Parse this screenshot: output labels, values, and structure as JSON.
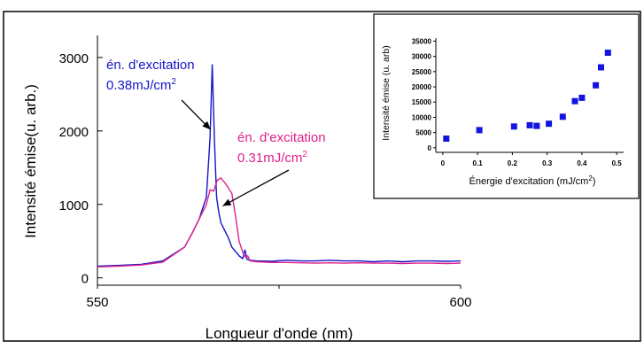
{
  "chart_data": [
    {
      "type": "line",
      "xlabel": "Longueur d'onde (nm)",
      "ylabel": "Intensité émise(u. arb.)",
      "xlim": [
        550,
        600
      ],
      "ylim": [
        -100,
        3300
      ],
      "x_ticks": [
        550,
        600
      ],
      "x_tick_labels": [
        "550",
        "600"
      ],
      "y_ticks": [
        0,
        1000,
        2000,
        3000
      ],
      "y_tick_labels": [
        "0",
        "1000",
        "2000",
        "3000"
      ],
      "grid": false,
      "series": [
        {
          "color": "#1414c8",
          "x": [
            550,
            553,
            556,
            559,
            562,
            563,
            564,
            565,
            565.5,
            565.8,
            566.1,
            566.4,
            566.7,
            567,
            567.5,
            568,
            568.5,
            569,
            569.5,
            570,
            570.3,
            570.6,
            571,
            572,
            574,
            576,
            578,
            580,
            582,
            584,
            586,
            588,
            590,
            592,
            594,
            596,
            598,
            600
          ],
          "values": [
            160,
            170,
            185,
            230,
            420,
            600,
            800,
            1100,
            1900,
            2900,
            1900,
            1100,
            900,
            750,
            650,
            550,
            420,
            360,
            300,
            260,
            380,
            250,
            240,
            230,
            225,
            240,
            230,
            230,
            240,
            230,
            230,
            220,
            230,
            220,
            230,
            230,
            225,
            230
          ]
        },
        {
          "color": "#e0208a",
          "x": [
            550,
            553,
            556,
            559,
            562,
            563,
            564,
            565,
            565.5,
            566,
            566.5,
            567,
            567.5,
            568,
            568.5,
            569,
            569.5,
            570,
            570.4,
            570.7,
            571,
            572,
            574,
            576,
            578,
            580,
            582,
            584,
            586,
            588,
            590,
            592,
            594,
            596,
            598,
            600
          ],
          "values": [
            150,
            160,
            175,
            215,
            420,
            600,
            800,
            1000,
            1200,
            1180,
            1330,
            1360,
            1300,
            1230,
            1150,
            850,
            500,
            350,
            280,
            300,
            230,
            220,
            210,
            210,
            205,
            200,
            205,
            200,
            205,
            200,
            200,
            195,
            200,
            200,
            195,
            200
          ]
        }
      ],
      "annotations": [
        {
          "text1": "én. d'excitation",
          "text2": "0.38mJ/cm",
          "sup": "2",
          "color": "#1414c8",
          "arrow_to": [
            565.8,
            2020
          ]
        },
        {
          "text1": "én. d'excitation",
          "text2": "0.31mJ/cm",
          "sup": "2",
          "color": "#e0208a",
          "arrow_to": [
            567.5,
            980
          ]
        }
      ]
    },
    {
      "type": "scatter",
      "xlabel": "Énergie d'excitation (mJ/cm",
      "xlabel_sup": "2",
      "xlabel_end": ")",
      "ylabel": "Intensité émise (u. arb)",
      "xlim": [
        -0.02,
        0.52
      ],
      "ylim": [
        -1500,
        36000
      ],
      "x_ticks": [
        0,
        0.1,
        0.2,
        0.3,
        0.4,
        0.5
      ],
      "x_tick_labels": [
        "0",
        "0.1",
        "0.2",
        "0.3",
        "0.4",
        "0.5"
      ],
      "y_ticks": [
        0,
        5000,
        10000,
        15000,
        20000,
        25000,
        30000,
        35000
      ],
      "y_tick_labels": [
        "0",
        "5000",
        "10000",
        "15000",
        "20000",
        "25000",
        "30000",
        "35000"
      ],
      "grid": false,
      "series": [
        {
          "color": "#1414e0",
          "x": [
            0.01,
            0.105,
            0.205,
            0.25,
            0.27,
            0.305,
            0.345,
            0.38,
            0.4,
            0.44,
            0.455,
            0.475
          ],
          "values": [
            3000,
            5800,
            7000,
            7400,
            7200,
            7900,
            10200,
            15300,
            16400,
            20500,
            26400,
            31200
          ]
        }
      ]
    }
  ]
}
